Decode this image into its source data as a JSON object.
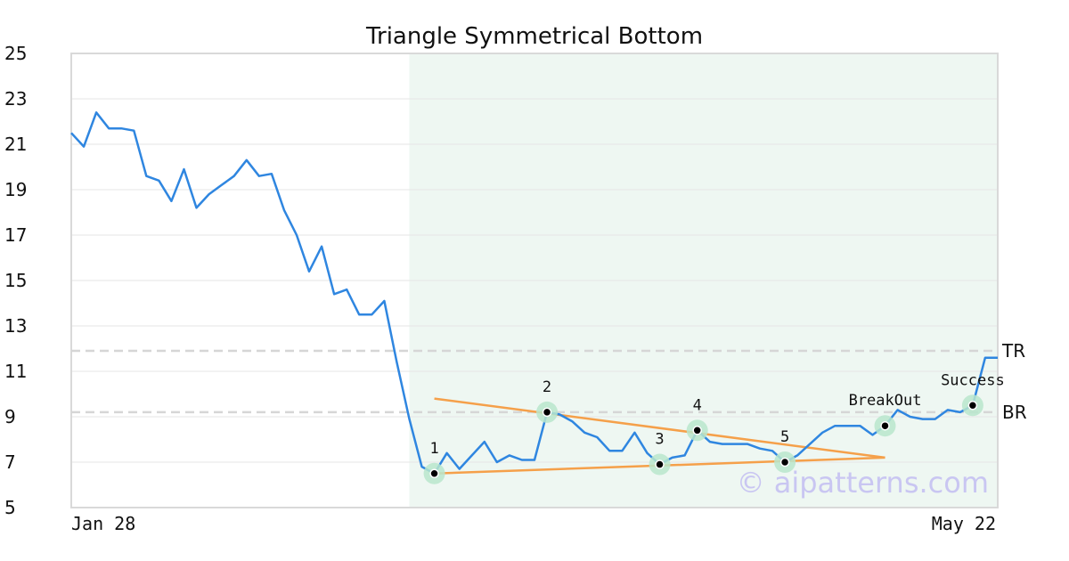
{
  "chart_data": {
    "type": "line",
    "title": "Triangle Symmetrical Bottom",
    "ylim": [
      5,
      25
    ],
    "yticks": [
      5,
      7,
      9,
      11,
      13,
      15,
      17,
      19,
      21,
      23,
      25
    ],
    "x_date_labels": [
      "Jan 28",
      "May 22"
    ],
    "grid": true,
    "colors": {
      "price_line": "#2f86e0",
      "trend_lines": "#f5a04a",
      "pattern_band": "#eef7f2",
      "marker_halo": "#b9e6cd",
      "level_lines": "#d6d6d6",
      "frame": "#d9d9d9"
    },
    "series": [
      {
        "values": [
          21.5,
          20.9,
          22.4,
          21.7,
          21.7,
          21.6,
          19.6,
          19.4,
          18.5,
          19.9,
          18.2,
          18.8,
          19.2,
          19.6,
          20.3,
          19.6,
          19.7,
          18.1,
          17.0,
          15.4,
          16.5,
          14.4,
          14.6,
          13.5,
          13.5,
          14.1,
          11.4,
          8.9,
          6.8,
          6.5,
          7.4,
          6.7,
          7.3,
          7.9,
          7.0,
          7.3,
          7.1,
          7.1,
          9.2,
          9.1,
          8.8,
          8.3,
          8.1,
          7.5,
          7.5,
          8.3,
          7.4,
          6.9,
          7.2,
          7.3,
          8.4,
          7.9,
          7.8,
          7.8,
          7.8,
          7.6,
          7.5,
          7.0,
          7.3,
          7.8,
          8.3,
          8.6,
          8.6,
          8.6,
          8.2,
          8.6,
          9.3,
          9.0,
          8.9,
          8.9,
          9.3,
          9.2,
          9.5,
          11.6,
          11.6
        ]
      }
    ],
    "pattern_region": {
      "start_index": 27,
      "end_index": 74
    },
    "levels": [
      {
        "label": "TR",
        "value": 11.9
      },
      {
        "label": "BR",
        "value": 9.2
      }
    ],
    "trend_lines": [
      {
        "from": {
          "index": 29,
          "value": 9.8
        },
        "to": {
          "index": 65,
          "value": 7.2
        }
      },
      {
        "from": {
          "index": 29,
          "value": 6.5
        },
        "to": {
          "index": 65,
          "value": 7.2
        }
      }
    ],
    "key_points": [
      {
        "label": "1",
        "index": 29,
        "value": 6.5,
        "label_pos": "above"
      },
      {
        "label": "2",
        "index": 38,
        "value": 9.2,
        "label_pos": "above"
      },
      {
        "label": "3",
        "index": 47,
        "value": 6.9,
        "label_pos": "above"
      },
      {
        "label": "4",
        "index": 50,
        "value": 8.4,
        "label_pos": "above"
      },
      {
        "label": "5",
        "index": 57,
        "value": 7.0,
        "label_pos": "above"
      },
      {
        "label": "BreakOut",
        "index": 65,
        "value": 8.6,
        "label_pos": "above"
      },
      {
        "label": "Success",
        "index": 72,
        "value": 9.5,
        "label_pos": "above"
      }
    ]
  },
  "watermark": "© aipatterns.com"
}
